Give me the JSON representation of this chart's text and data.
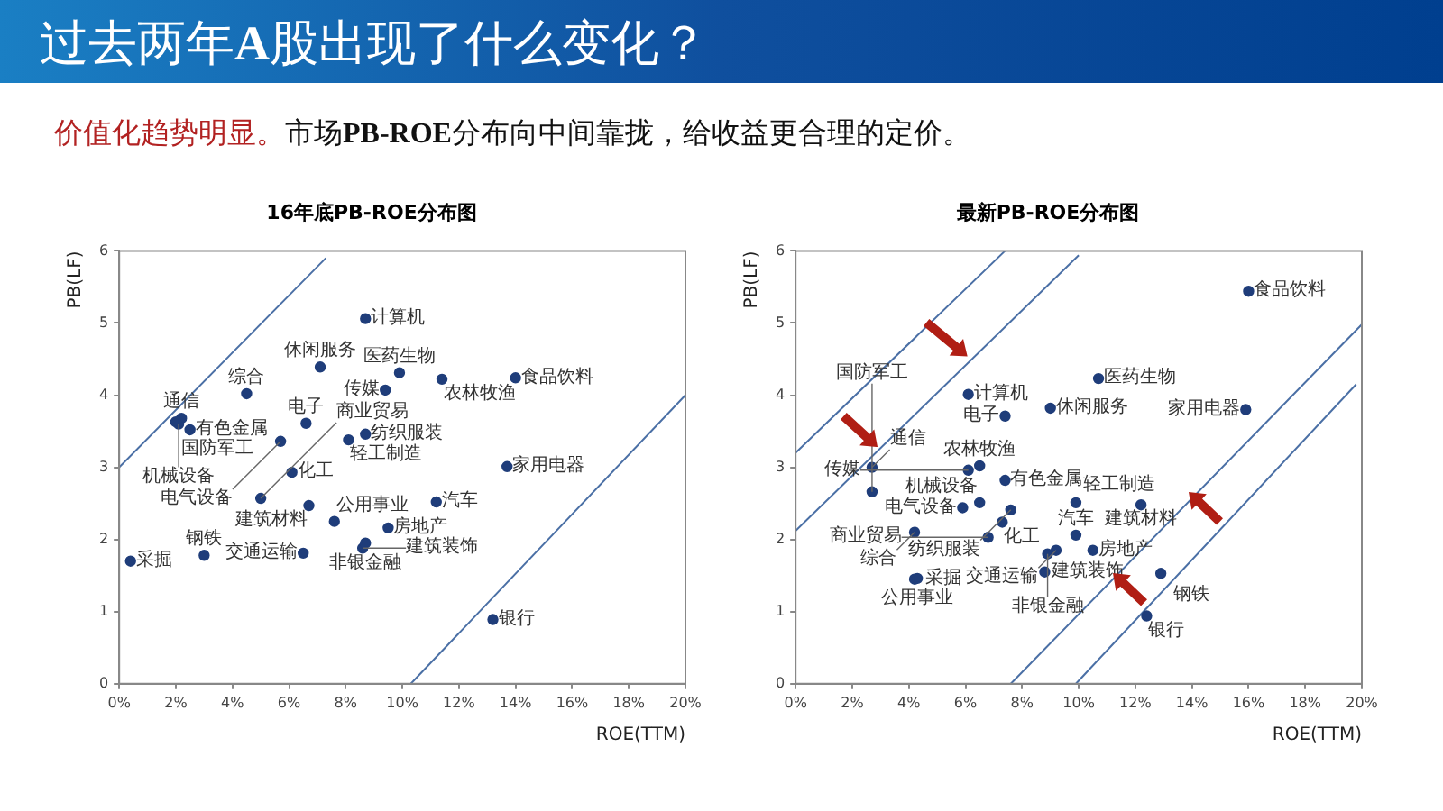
{
  "chart_data": [
    {
      "type": "scatter",
      "title": "16年底PB-ROE分布图",
      "xlabel": "ROE(TTM)",
      "ylabel": "PB(LF)",
      "annotations": [
        "过去两年A股出现了什么变化？",
        "价值化趋势明显。",
        "市场PB-ROE分布向中间靠拢，给收益更合理的定价。"
      ],
      "xlim": [
        0,
        20
      ],
      "xticks": [
        {
          "value": 0,
          "label": "0%"
        },
        {
          "value": 2,
          "label": "2%"
        },
        {
          "value": 4,
          "label": "4%"
        },
        {
          "value": 6,
          "label": "6%"
        },
        {
          "value": 8,
          "label": "8%"
        },
        {
          "value": 10,
          "label": "10%"
        },
        {
          "value": 12,
          "label": "12%"
        },
        {
          "value": 14,
          "label": "14%"
        },
        {
          "value": 16,
          "label": "16%"
        },
        {
          "value": 18,
          "label": "18%"
        },
        {
          "value": 20,
          "label": "20%"
        }
      ],
      "ylim": [
        0,
        6
      ],
      "yticks": [
        0,
        1,
        2,
        3,
        4,
        5,
        6
      ],
      "grid": false,
      "legend": false,
      "marker": "circle",
      "series": [
        {
          "name": "采掘",
          "color": "#1f3d7a",
          "x": [
            0.4
          ],
          "values": [
            1.7
          ]
        },
        {
          "name": "钢铁",
          "color": "#1f3d7a",
          "x": [
            3.0
          ],
          "values": [
            1.78
          ]
        },
        {
          "name": "国防军工",
          "color": "#1f3d7a",
          "x": [
            2.0
          ],
          "values": [
            3.63
          ]
        },
        {
          "name": "通信",
          "color": "#1f3d7a",
          "x": [
            2.2
          ],
          "values": [
            3.68
          ]
        },
        {
          "name": "有色金属",
          "color": "#1f3d7a",
          "x": [
            2.5
          ],
          "values": [
            3.52
          ]
        },
        {
          "name": "机械设备",
          "color": "#1f3d7a",
          "x": [
            2.1
          ],
          "values": [
            3.6
          ]
        },
        {
          "name": "综合",
          "color": "#1f3d7a",
          "x": [
            4.5
          ],
          "values": [
            4.02
          ]
        },
        {
          "name": "休闲服务",
          "color": "#1f3d7a",
          "x": [
            7.1
          ],
          "values": [
            4.39
          ]
        },
        {
          "name": "计算机",
          "color": "#1f3d7a",
          "x": [
            8.7
          ],
          "values": [
            5.06
          ]
        },
        {
          "name": "医药生物",
          "color": "#1f3d7a",
          "x": [
            9.9
          ],
          "values": [
            4.31
          ]
        },
        {
          "name": "传媒",
          "color": "#1f3d7a",
          "x": [
            9.4
          ],
          "values": [
            4.07
          ]
        },
        {
          "name": "农林牧渔",
          "color": "#1f3d7a",
          "x": [
            11.4
          ],
          "values": [
            4.22
          ]
        },
        {
          "name": "食品饮料",
          "color": "#1f3d7a",
          "x": [
            14.0
          ],
          "values": [
            4.24
          ]
        },
        {
          "name": "电子",
          "color": "#1f3d7a",
          "x": [
            6.6
          ],
          "values": [
            3.61
          ]
        },
        {
          "name": "电气设备",
          "color": "#1f3d7a",
          "x": [
            5.7
          ],
          "values": [
            3.36
          ]
        },
        {
          "name": "轻工制造",
          "color": "#1f3d7a",
          "x": [
            8.1
          ],
          "values": [
            3.38
          ]
        },
        {
          "name": "纺织服装",
          "color": "#1f3d7a",
          "x": [
            8.7
          ],
          "values": [
            3.46
          ]
        },
        {
          "name": "家用电器",
          "color": "#1f3d7a",
          "x": [
            13.7
          ],
          "values": [
            3.01
          ]
        },
        {
          "name": "商业贸易",
          "color": "#1f3d7a",
          "x": [
            5.0
          ],
          "values": [
            2.57
          ]
        },
        {
          "name": "化工",
          "color": "#1f3d7a",
          "x": [
            6.1
          ],
          "values": [
            2.93
          ]
        },
        {
          "name": "公用事业",
          "color": "#1f3d7a",
          "x": [
            7.6
          ],
          "values": [
            2.25
          ]
        },
        {
          "name": "建筑材料",
          "color": "#1f3d7a",
          "x": [
            6.7
          ],
          "values": [
            2.47
          ]
        },
        {
          "name": "汽车",
          "color": "#1f3d7a",
          "x": [
            11.2
          ],
          "values": [
            2.52
          ]
        },
        {
          "name": "房地产",
          "color": "#1f3d7a",
          "x": [
            9.5
          ],
          "values": [
            2.16
          ]
        },
        {
          "name": "非银金融",
          "color": "#1f3d7a",
          "x": [
            8.7
          ],
          "values": [
            1.95
          ]
        },
        {
          "name": "建筑装饰",
          "color": "#1f3d7a",
          "x": [
            8.6
          ],
          "values": [
            1.88
          ]
        },
        {
          "name": "交通运输",
          "color": "#1f3d7a",
          "x": [
            6.5
          ],
          "values": [
            1.81
          ]
        },
        {
          "name": "银行",
          "color": "#1f3d7a",
          "x": [
            13.2
          ],
          "values": [
            0.89
          ]
        },
        {
          "type": "line",
          "marker": "none",
          "color": "#4a6fa5",
          "x": [
            0,
            7.3
          ],
          "values": [
            3.0,
            5.9
          ]
        },
        {
          "type": "line",
          "marker": "none",
          "color": "#4a6fa5",
          "x": [
            10.3,
            20
          ],
          "values": [
            0,
            4.0
          ]
        }
      ]
    },
    {
      "type": "scatter",
      "title": "最新PB-ROE分布图",
      "xlabel": "ROE(TTM)",
      "ylabel": "PB(LF)",
      "xlim": [
        0,
        20
      ],
      "xticks": [
        {
          "value": 0,
          "label": "0%"
        },
        {
          "value": 2,
          "label": "2%"
        },
        {
          "value": 4,
          "label": "4%"
        },
        {
          "value": 6,
          "label": "6%"
        },
        {
          "value": 8,
          "label": "8%"
        },
        {
          "value": 10,
          "label": "10%"
        },
        {
          "value": 12,
          "label": "12%"
        },
        {
          "value": 14,
          "label": "14%"
        },
        {
          "value": 16,
          "label": "16%"
        },
        {
          "value": 18,
          "label": "18%"
        },
        {
          "value": 20,
          "label": "20%"
        }
      ],
      "ylim": [
        0,
        6
      ],
      "yticks": [
        0,
        1,
        2,
        3,
        4,
        5,
        6
      ],
      "grid": false,
      "legend": false,
      "marker": "circle",
      "series": [
        {
          "name": "计算机",
          "color": "#1f3d7a",
          "x": [
            6.1
          ],
          "values": [
            4.01
          ]
        },
        {
          "name": "电子",
          "color": "#1f3d7a",
          "x": [
            7.4
          ],
          "values": [
            3.71
          ]
        },
        {
          "name": "休闲服务",
          "color": "#1f3d7a",
          "x": [
            9.0
          ],
          "values": [
            3.82
          ]
        },
        {
          "name": "医药生物",
          "color": "#1f3d7a",
          "x": [
            10.7
          ],
          "values": [
            4.23
          ]
        },
        {
          "name": "食品饮料",
          "color": "#1f3d7a",
          "x": [
            16.0
          ],
          "values": [
            5.44
          ]
        },
        {
          "name": "家用电器",
          "color": "#1f3d7a",
          "x": [
            15.9
          ],
          "values": [
            3.8
          ]
        },
        {
          "name": "通信",
          "color": "#1f3d7a",
          "x": [
            2.7
          ],
          "values": [
            3.0
          ]
        },
        {
          "name": "国防军工",
          "color": "#1f3d7a",
          "x": [
            2.7
          ],
          "values": [
            2.66
          ]
        },
        {
          "name": "电气设备",
          "color": "#1f3d7a",
          "x": [
            5.9
          ],
          "values": [
            2.44
          ]
        },
        {
          "name": "综合",
          "color": "#1f3d7a",
          "x": [
            4.2
          ],
          "values": [
            2.1
          ]
        },
        {
          "name": "商业贸易",
          "color": "#1f3d7a",
          "x": [
            6.8
          ],
          "values": [
            2.03
          ]
        },
        {
          "name": "传媒",
          "color": "#1f3d7a",
          "x": [
            6.1
          ],
          "values": [
            2.96
          ]
        },
        {
          "name": "农林牧渔",
          "color": "#1f3d7a",
          "x": [
            6.5
          ],
          "values": [
            3.02
          ]
        },
        {
          "name": "有色金属",
          "color": "#1f3d7a",
          "x": [
            7.4
          ],
          "values": [
            2.82
          ]
        },
        {
          "name": "机械设备",
          "color": "#1f3d7a",
          "x": [
            6.5
          ],
          "values": [
            2.51
          ]
        },
        {
          "name": "纺织服装",
          "color": "#1f3d7a",
          "x": [
            7.6
          ],
          "values": [
            2.41
          ]
        },
        {
          "name": "化工",
          "color": "#1f3d7a",
          "x": [
            7.3
          ],
          "values": [
            2.24
          ]
        },
        {
          "name": "轻工制造",
          "color": "#1f3d7a",
          "x": [
            9.9
          ],
          "values": [
            2.51
          ]
        },
        {
          "name": "汽车",
          "color": "#1f3d7a",
          "x": [
            9.9
          ],
          "values": [
            2.06
          ]
        },
        {
          "name": "非银金融",
          "color": "#1f3d7a",
          "x": [
            8.9
          ],
          "values": [
            1.8
          ]
        },
        {
          "name": "交通运输",
          "color": "#1f3d7a",
          "x": [
            9.2
          ],
          "values": [
            1.85
          ]
        },
        {
          "name": "房地产",
          "color": "#1f3d7a",
          "x": [
            10.5
          ],
          "values": [
            1.85
          ]
        },
        {
          "name": "建筑装饰",
          "color": "#1f3d7a",
          "x": [
            8.8
          ],
          "values": [
            1.55
          ]
        },
        {
          "name": "建筑材料",
          "color": "#1f3d7a",
          "x": [
            12.2
          ],
          "values": [
            2.48
          ]
        },
        {
          "name": "公用事业",
          "color": "#1f3d7a",
          "x": [
            4.3
          ],
          "values": [
            1.46
          ]
        },
        {
          "name": "采掘",
          "color": "#1f3d7a",
          "x": [
            4.2
          ],
          "values": [
            1.45
          ]
        },
        {
          "name": "钢铁",
          "color": "#1f3d7a",
          "x": [
            12.9
          ],
          "values": [
            1.53
          ]
        },
        {
          "name": "银行",
          "color": "#1f3d7a",
          "x": [
            12.4
          ],
          "values": [
            0.94
          ]
        },
        {
          "type": "line",
          "marker": "none",
          "color": "#4a6fa5",
          "x": [
            0,
            7.4
          ],
          "values": [
            3.2,
            6.0
          ]
        },
        {
          "type": "line",
          "marker": "none",
          "color": "#4a6fa5",
          "x": [
            0,
            10
          ],
          "values": [
            2.12,
            5.94
          ]
        },
        {
          "type": "line",
          "marker": "none",
          "color": "#4a6fa5",
          "x": [
            7.6,
            20
          ],
          "values": [
            0,
            4.98
          ]
        },
        {
          "type": "line",
          "marker": "none",
          "color": "#4a6fa5",
          "x": [
            9.9,
            19.8
          ],
          "values": [
            0,
            4.15
          ]
        }
      ]
    }
  ]
}
